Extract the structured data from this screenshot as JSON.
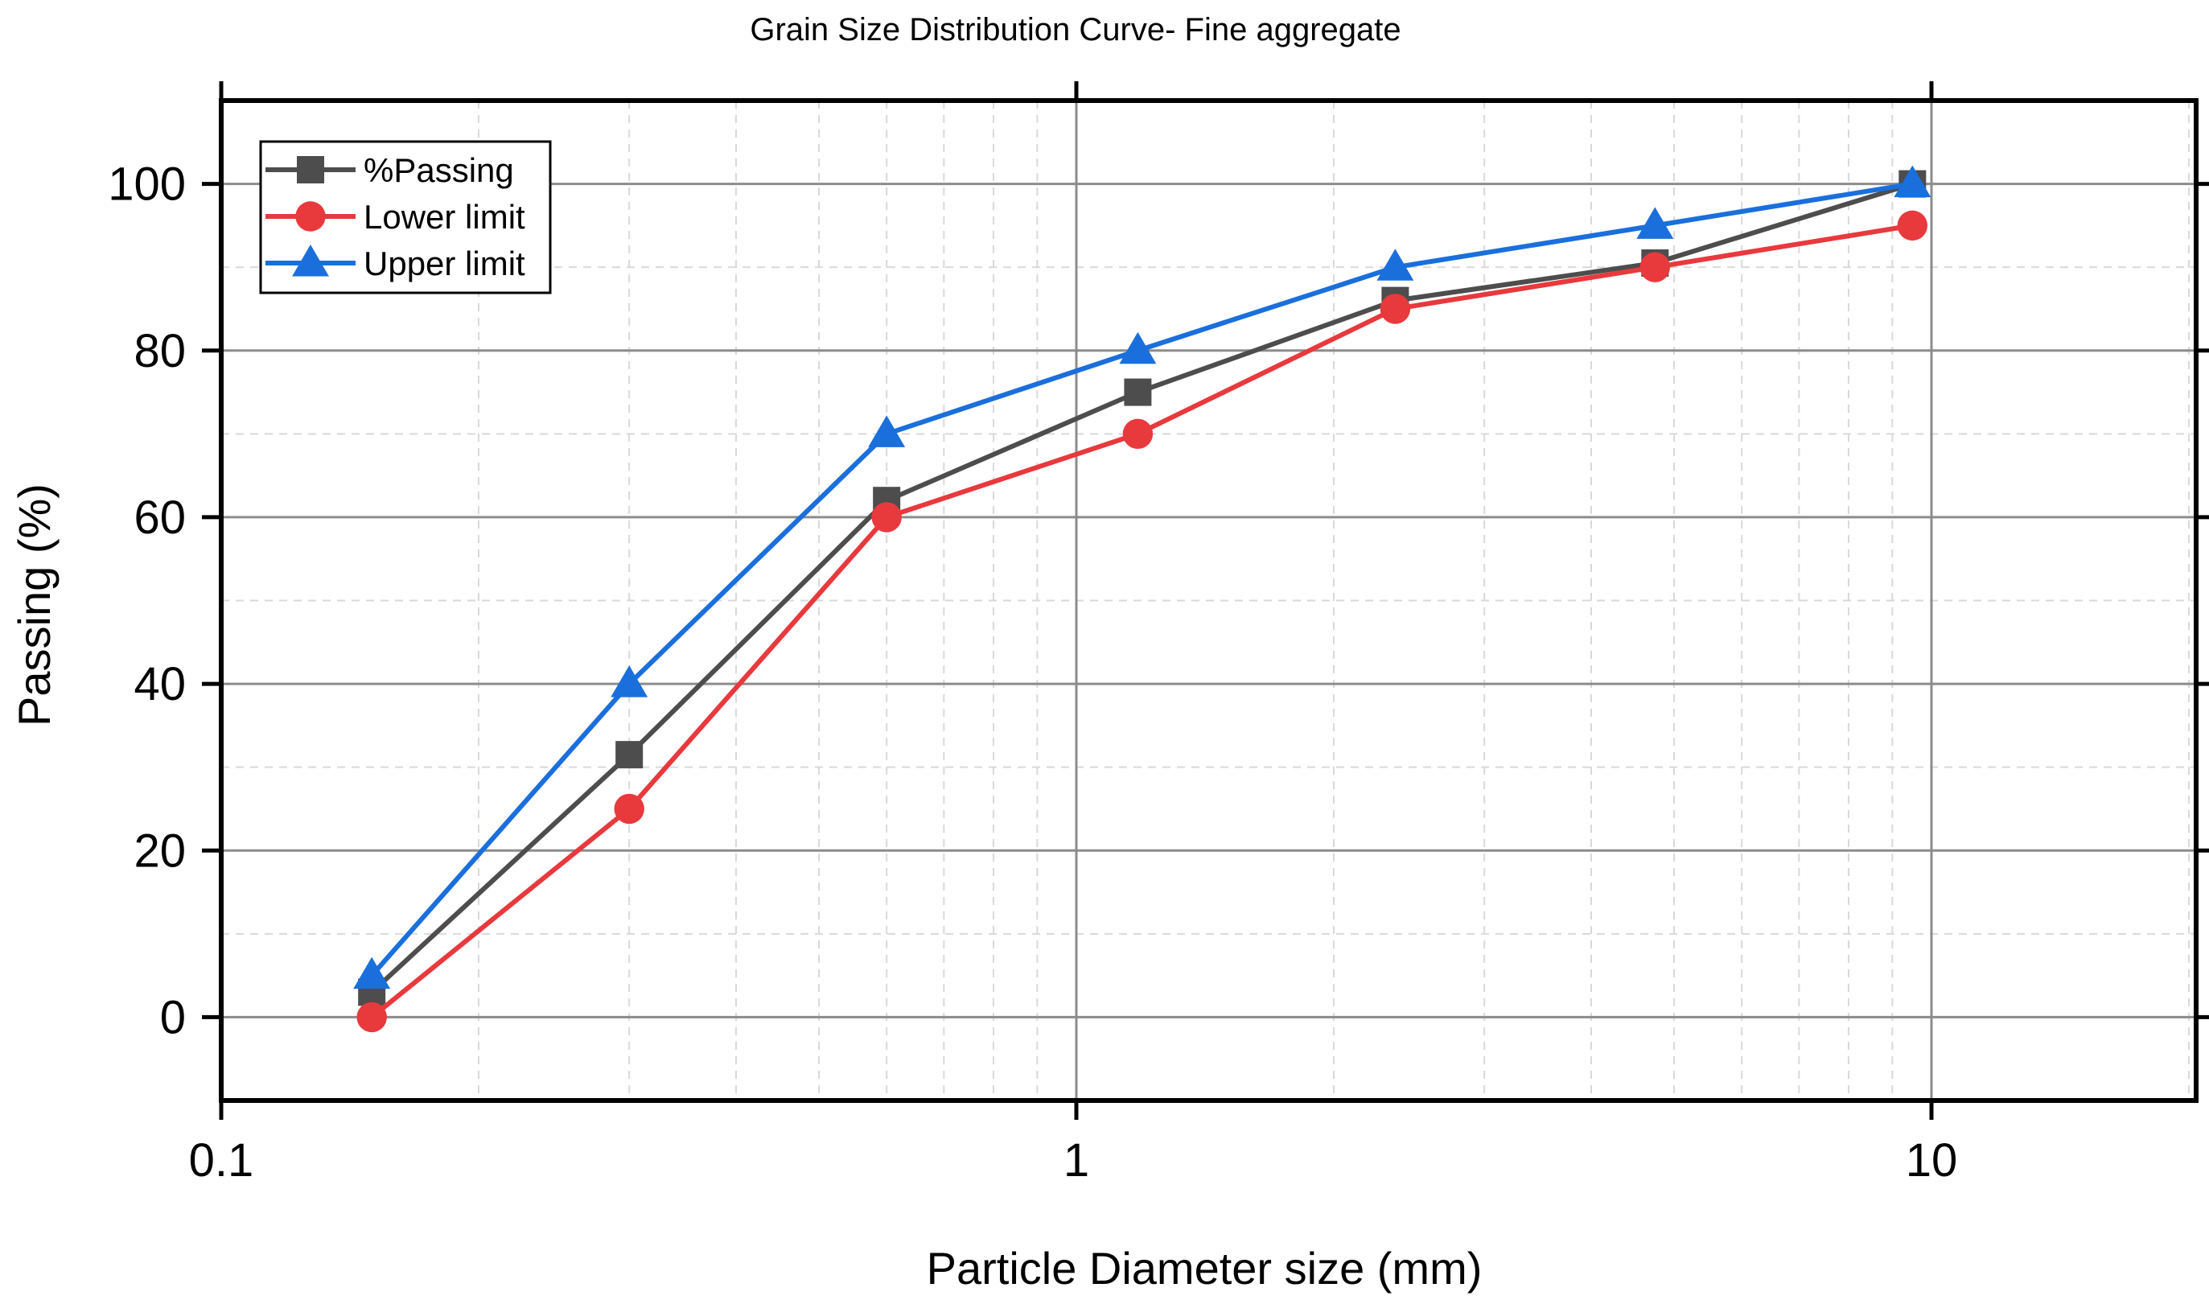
{
  "chart_data": {
    "type": "line",
    "title": "Grain Size Distribution Curve- Fine aggregate",
    "xlabel": "Particle Diameter size (mm)",
    "ylabel": "Passing (%)",
    "x_scale": "log",
    "xlim": [
      0.1,
      20
    ],
    "ylim": [
      -10,
      110
    ],
    "x_ticks": [
      {
        "value": 0.1,
        "label": "0.1"
      },
      {
        "value": 1,
        "label": "1"
      },
      {
        "value": 10,
        "label": "10"
      }
    ],
    "y_ticks": [
      {
        "value": 0,
        "label": "0"
      },
      {
        "value": 20,
        "label": "20"
      },
      {
        "value": 40,
        "label": "40"
      },
      {
        "value": 60,
        "label": "60"
      },
      {
        "value": 80,
        "label": "80"
      },
      {
        "value": 100,
        "label": "100"
      }
    ],
    "grid": true,
    "legend_position": "top-left",
    "x": [
      0.15,
      0.3,
      0.6,
      1.18,
      2.36,
      4.75,
      9.5
    ],
    "series": [
      {
        "name": "%Passing",
        "marker": "square",
        "color": "#4d4d4d",
        "values": [
          3,
          31.5,
          62,
          75,
          86,
          90.5,
          100
        ]
      },
      {
        "name": "Lower limit",
        "marker": "circle",
        "color": "#e8393d",
        "values": [
          0,
          25,
          60,
          70,
          85,
          90,
          95
        ]
      },
      {
        "name": "Upper limit",
        "marker": "triangle",
        "color": "#1a6fdc",
        "values": [
          5,
          40,
          70,
          80,
          90,
          95,
          100
        ]
      }
    ]
  }
}
